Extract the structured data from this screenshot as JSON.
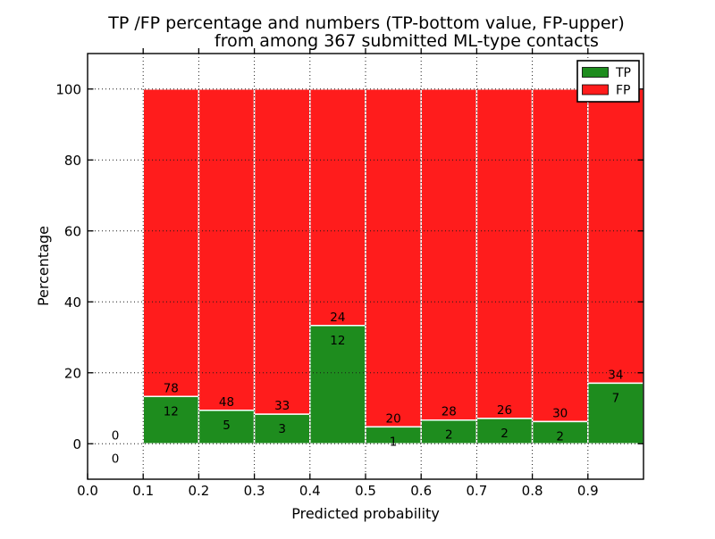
{
  "figure": {
    "title_line1": "TP /FP percentage and numbers (TP-bottom value, FP-upper)",
    "title_line2": "from among 367 submitted ML-type contacts",
    "xlabel": "Predicted probability",
    "ylabel": "Percentage"
  },
  "legend": {
    "position": "upper-right",
    "entries": [
      {
        "label": "TP",
        "color": "#1e8c1e"
      },
      {
        "label": "FP",
        "color": "#ff1c1c"
      }
    ]
  },
  "chart_data": {
    "type": "bar",
    "stacked": true,
    "title": "TP /FP percentage and numbers (TP-bottom value, FP-upper)\nfrom among 367 submitted ML-type contacts",
    "xlabel": "Predicted probability",
    "ylabel": "Percentage",
    "total_contacts": 367,
    "xlim": [
      0.0,
      1.0
    ],
    "ylim": [
      -10,
      110
    ],
    "bin_width": 0.1,
    "x_ticks": [
      0.0,
      0.1,
      0.2,
      0.3,
      0.4,
      0.5,
      0.6,
      0.7,
      0.8,
      0.9
    ],
    "x_tick_labels": [
      "0.0",
      "0.1",
      "0.2",
      "0.3",
      "0.4",
      "0.5",
      "0.6",
      "0.7",
      "0.8",
      "0.9"
    ],
    "y_ticks": [
      0,
      20,
      40,
      60,
      80,
      100
    ],
    "y_tick_labels": [
      "0",
      "20",
      "40",
      "60",
      "80",
      "100"
    ],
    "grid": "dotted",
    "grid_color": "#1a1a1a",
    "legend_position": "upper right",
    "bar_edge_color": "#ffffff",
    "categories": [
      "0.0-0.1",
      "0.1-0.2",
      "0.2-0.3",
      "0.3-0.4",
      "0.4-0.5",
      "0.5-0.6",
      "0.6-0.7",
      "0.7-0.8",
      "0.8-0.9",
      "0.9-1.0"
    ],
    "bin_starts": [
      0.0,
      0.1,
      0.2,
      0.3,
      0.4,
      0.5,
      0.6,
      0.7,
      0.8,
      0.9
    ],
    "series": [
      {
        "name": "TP",
        "color": "#1e8c1e",
        "counts": [
          0,
          12,
          5,
          3,
          12,
          1,
          2,
          2,
          2,
          7
        ],
        "pct": [
          0,
          13.33,
          9.43,
          8.33,
          33.33,
          4.76,
          6.67,
          7.14,
          6.25,
          17.07
        ]
      },
      {
        "name": "FP",
        "color": "#ff1c1c",
        "counts": [
          0,
          78,
          48,
          33,
          24,
          20,
          28,
          26,
          30,
          34
        ],
        "pct": [
          0,
          86.67,
          90.57,
          91.67,
          66.67,
          95.24,
          93.33,
          92.86,
          93.75,
          82.93
        ]
      }
    ]
  }
}
